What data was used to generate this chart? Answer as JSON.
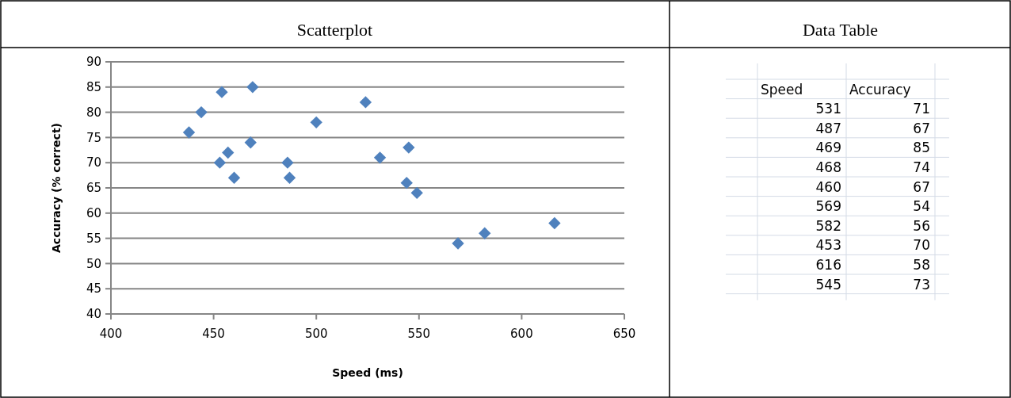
{
  "chart_data": [
    {
      "type": "scatter",
      "title": "Scatterplot",
      "xlabel": "Speed (ms)",
      "ylabel": "Accuracy (% correct)",
      "x": [
        438,
        444,
        454,
        469,
        457,
        453,
        460,
        468,
        486,
        487,
        500,
        524,
        531,
        545,
        544,
        549,
        569,
        582,
        616
      ],
      "values": [
        76,
        80,
        84,
        85,
        72,
        70,
        67,
        74,
        70,
        67,
        78,
        82,
        71,
        73,
        66,
        64,
        54,
        56,
        58
      ],
      "color": "#4f81bd",
      "marker": "diamond",
      "grid": "y",
      "xlim": [
        400,
        650
      ],
      "xticks": [
        400,
        450,
        500,
        550,
        600,
        650
      ],
      "ylim": [
        40,
        90
      ],
      "yticks": [
        40,
        45,
        50,
        55,
        60,
        65,
        70,
        75,
        80,
        85,
        90
      ]
    },
    {
      "type": "other",
      "title": "Data Table",
      "categories": [
        "Speed",
        "Accuracy"
      ],
      "annotations": [
        "531",
        "71",
        "487",
        "67",
        "469",
        "85",
        "468",
        "74",
        "460",
        "67",
        "569",
        "54",
        "582",
        "56",
        "453",
        "70",
        "616",
        "58",
        "545",
        "73"
      ]
    }
  ]
}
